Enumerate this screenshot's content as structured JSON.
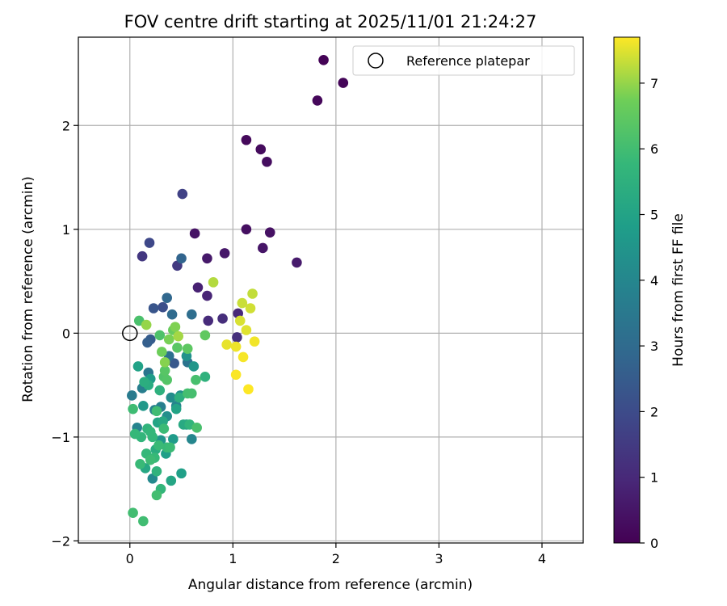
{
  "chart_data": {
    "type": "scatter",
    "title": "FOV centre drift starting at 2025/11/01 21:24:27",
    "xlabel": "Angular distance from reference (arcmin)",
    "ylabel": "Rotation from reference (arcmin)",
    "xlim": [
      -0.5,
      4.4
    ],
    "ylim": [
      -2.02,
      2.85
    ],
    "xticks": [
      0,
      1,
      2,
      3,
      4
    ],
    "xtick_labels": [
      "0",
      "1",
      "2",
      "3",
      "4"
    ],
    "yticks": [
      -2,
      -1,
      0,
      1,
      2
    ],
    "ytick_labels": [
      "−2",
      "−1",
      "0",
      "1",
      "2"
    ],
    "grid": true,
    "legend": {
      "position": "top-right",
      "label": "Reference platepar"
    },
    "reference_point": {
      "x": 0,
      "y": 0
    },
    "colorbar": {
      "label": "Hours from first FF file",
      "colormap": "viridis",
      "range": [
        0,
        7.7
      ],
      "ticks": [
        0,
        1,
        2,
        3,
        4,
        5,
        6,
        7
      ],
      "tick_labels": [
        "0",
        "1",
        "2",
        "3",
        "4",
        "5",
        "6",
        "7"
      ]
    },
    "series": [
      {
        "name": "FOV centre drift",
        "points": [
          [
            1.88,
            2.63,
            0.05
          ],
          [
            2.07,
            2.41,
            0.1
          ],
          [
            1.82,
            2.24,
            0.15
          ],
          [
            1.13,
            1.86,
            0.2
          ],
          [
            1.27,
            1.77,
            0.25
          ],
          [
            1.33,
            1.65,
            0.3
          ],
          [
            1.13,
            1.0,
            0.35
          ],
          [
            1.36,
            0.97,
            0.4
          ],
          [
            0.63,
            0.96,
            0.45
          ],
          [
            1.29,
            0.82,
            0.5
          ],
          [
            0.92,
            0.77,
            0.55
          ],
          [
            0.75,
            0.72,
            0.6
          ],
          [
            1.62,
            0.68,
            0.65
          ],
          [
            0.66,
            0.44,
            0.8
          ],
          [
            0.75,
            0.36,
            0.9
          ],
          [
            1.05,
            0.19,
            1.0
          ],
          [
            0.76,
            0.12,
            1.05
          ],
          [
            0.9,
            0.14,
            1.15
          ],
          [
            1.04,
            -0.04,
            1.2
          ],
          [
            0.12,
            0.74,
            1.4
          ],
          [
            0.46,
            0.65,
            1.5
          ],
          [
            0.51,
            1.34,
            1.7
          ],
          [
            0.19,
            0.87,
            1.9
          ],
          [
            0.32,
            0.25,
            2.1
          ],
          [
            0.23,
            0.24,
            2.3
          ],
          [
            0.43,
            -0.29,
            2.4
          ],
          [
            0.2,
            -0.06,
            2.5
          ],
          [
            0.17,
            -0.09,
            2.6
          ],
          [
            0.5,
            0.72,
            2.8
          ],
          [
            0.36,
            0.34,
            2.9
          ],
          [
            0.41,
            0.18,
            3.0
          ],
          [
            0.6,
            0.18,
            3.1
          ],
          [
            0.38,
            -0.22,
            3.2
          ],
          [
            0.56,
            -0.28,
            3.3
          ],
          [
            0.18,
            -0.38,
            3.4
          ],
          [
            0.02,
            -0.6,
            3.6
          ],
          [
            0.12,
            -0.53,
            3.7
          ],
          [
            0.3,
            -0.71,
            3.75
          ],
          [
            0.24,
            -0.74,
            3.8
          ],
          [
            0.07,
            -0.91,
            3.9
          ],
          [
            0.45,
            -0.7,
            3.95
          ],
          [
            0.6,
            -1.02,
            4.0
          ],
          [
            0.22,
            -1.4,
            4.1
          ],
          [
            0.4,
            -0.62,
            4.2
          ],
          [
            0.49,
            -0.6,
            4.25
          ],
          [
            0.36,
            -0.8,
            4.3
          ],
          [
            0.55,
            -0.22,
            4.4
          ],
          [
            0.3,
            -1.03,
            4.5
          ],
          [
            0.62,
            -0.32,
            4.55
          ],
          [
            0.13,
            -0.7,
            4.6
          ],
          [
            0.42,
            -1.02,
            4.7
          ],
          [
            0.2,
            -0.44,
            4.75
          ],
          [
            0.55,
            -0.88,
            4.8
          ],
          [
            0.35,
            -1.16,
            4.85
          ],
          [
            0.5,
            -1.35,
            4.9
          ],
          [
            0.08,
            -0.32,
            4.95
          ],
          [
            0.45,
            -0.73,
            5.0
          ],
          [
            0.27,
            -0.86,
            5.05
          ],
          [
            0.4,
            -1.42,
            5.1
          ],
          [
            0.15,
            -1.3,
            5.15
          ],
          [
            0.32,
            -0.85,
            5.2
          ],
          [
            0.52,
            -0.88,
            5.25
          ],
          [
            0.18,
            -0.5,
            5.3
          ],
          [
            0.25,
            -1.12,
            5.35
          ],
          [
            0.14,
            -0.47,
            5.4
          ],
          [
            0.48,
            -0.62,
            5.45
          ],
          [
            0.29,
            -0.55,
            5.5
          ],
          [
            0.73,
            -0.42,
            5.55
          ],
          [
            0.26,
            -1.33,
            5.6
          ],
          [
            0.17,
            -0.92,
            5.62
          ],
          [
            0.58,
            -0.88,
            5.65
          ],
          [
            0.11,
            -1.0,
            5.68
          ],
          [
            0.3,
            -1.5,
            5.7
          ],
          [
            0.22,
            -1.0,
            5.72
          ],
          [
            0.2,
            -0.95,
            5.74
          ],
          [
            0.05,
            -0.97,
            5.76
          ],
          [
            0.16,
            -1.16,
            5.78
          ],
          [
            0.24,
            -1.2,
            5.8
          ],
          [
            0.36,
            -1.1,
            5.82
          ],
          [
            0.1,
            -1.26,
            5.84
          ],
          [
            0.28,
            -1.08,
            5.86
          ],
          [
            0.39,
            -1.1,
            5.88
          ],
          [
            0.33,
            -0.92,
            5.9
          ],
          [
            0.2,
            -1.22,
            5.92
          ],
          [
            0.03,
            -0.73,
            5.94
          ],
          [
            0.26,
            -0.75,
            5.96
          ],
          [
            0.13,
            -1.81,
            5.98
          ],
          [
            0.03,
            -1.73,
            6.0
          ],
          [
            0.26,
            -1.56,
            6.02
          ],
          [
            0.56,
            -0.58,
            6.05
          ],
          [
            0.6,
            -0.58,
            6.08
          ],
          [
            0.64,
            -0.45,
            6.1
          ],
          [
            0.65,
            -0.91,
            6.12
          ],
          [
            0.09,
            0.12,
            6.15
          ],
          [
            0.29,
            -0.02,
            6.2
          ],
          [
            0.33,
            -0.42,
            6.25
          ],
          [
            0.36,
            -0.45,
            6.3
          ],
          [
            0.34,
            -0.36,
            6.35
          ],
          [
            0.46,
            -0.14,
            6.4
          ],
          [
            0.56,
            -0.15,
            6.45
          ],
          [
            0.73,
            -0.02,
            6.5
          ],
          [
            0.42,
            0.03,
            6.6
          ],
          [
            0.31,
            -0.18,
            6.7
          ],
          [
            0.38,
            -0.06,
            6.8
          ],
          [
            0.44,
            0.06,
            6.85
          ],
          [
            0.34,
            -0.28,
            6.9
          ],
          [
            0.16,
            0.08,
            7.0
          ],
          [
            0.47,
            -0.03,
            7.1
          ],
          [
            0.81,
            0.49,
            7.2
          ],
          [
            1.19,
            0.38,
            7.3
          ],
          [
            1.09,
            0.29,
            7.35
          ],
          [
            1.17,
            0.24,
            7.4
          ],
          [
            1.07,
            0.12,
            7.45
          ],
          [
            1.13,
            0.03,
            7.5
          ],
          [
            0.94,
            -0.11,
            7.55
          ],
          [
            1.03,
            -0.13,
            7.6
          ],
          [
            1.21,
            -0.08,
            7.62
          ],
          [
            1.1,
            -0.23,
            7.65
          ],
          [
            1.03,
            -0.4,
            7.68
          ],
          [
            1.15,
            -0.54,
            7.7
          ]
        ]
      }
    ]
  }
}
